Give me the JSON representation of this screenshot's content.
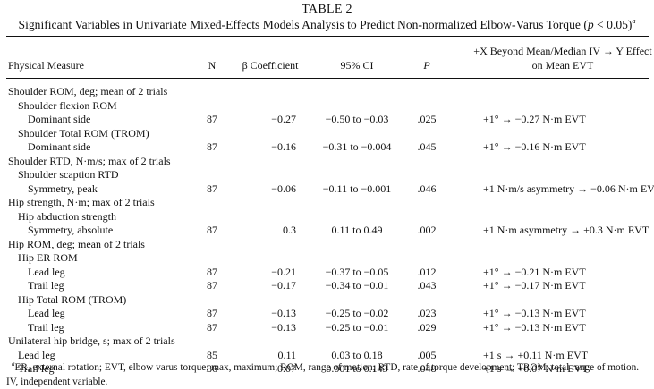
{
  "caption": {
    "table_number": "TABLE 2",
    "title_main": "Significant Variables in Univariate Mixed-Effects Models Analysis to Predict Non-normalized Elbow-Varus Torque (",
    "title_p": "p",
    "title_tail": " < 0.05)",
    "title_sup": "a"
  },
  "headers": {
    "physical_measure": "Physical Measure",
    "n": "N",
    "beta": "β Coefficient",
    "ci": "95% CI",
    "p": "P",
    "effect_line1": "+X Beyond Mean/Median IV → Y Effect",
    "effect_line2": "on Mean EVT"
  },
  "rows": [
    {
      "indent": 0,
      "label": "Shoulder ROM, deg; mean of 2 trials"
    },
    {
      "indent": 1,
      "label": "Shoulder flexion ROM"
    },
    {
      "indent": 2,
      "label": "Dominant side",
      "n": "87",
      "beta": "−0.27",
      "ci": "−0.50 to −0.03",
      "p": ".025",
      "effect": "+1° → −0.27 N·m EVT"
    },
    {
      "indent": 1,
      "label": "Shoulder Total ROM (TROM)"
    },
    {
      "indent": 2,
      "label": "Dominant side",
      "n": "87",
      "beta": "−0.16",
      "ci": "−0.31 to −0.004",
      "p": ".045",
      "effect": "+1° → −0.16 N·m EVT"
    },
    {
      "indent": 0,
      "label": "Shoulder RTD, N·m/s; max of 2 trials"
    },
    {
      "indent": 1,
      "label": "Shoulder scaption RTD"
    },
    {
      "indent": 2,
      "label": "Symmetry, peak",
      "n": "87",
      "beta": "−0.06",
      "ci": "−0.11 to −0.001",
      "p": ".046",
      "effect": "+1 N·m/s asymmetry → −0.06 N·m EVT"
    },
    {
      "indent": 0,
      "label": "Hip strength, N·m; max of 2 trials"
    },
    {
      "indent": 1,
      "label": "Hip abduction strength"
    },
    {
      "indent": 2,
      "label": "Symmetry, absolute",
      "n": "87",
      "beta": "0.3",
      "ci": "0.11 to 0.49",
      "p": ".002",
      "effect": "+1 N·m asymmetry → +0.3 N·m EVT"
    },
    {
      "indent": 0,
      "label": "Hip ROM, deg; mean of 2 trials"
    },
    {
      "indent": 1,
      "label": "Hip ER ROM"
    },
    {
      "indent": 2,
      "label": "Lead leg",
      "n": "87",
      "beta": "−0.21",
      "ci": "−0.37 to −0.05",
      "p": ".012",
      "effect": "+1° → −0.21 N·m EVT"
    },
    {
      "indent": 2,
      "label": "Trail leg",
      "n": "87",
      "beta": "−0.17",
      "ci": "−0.34 to −0.01",
      "p": ".043",
      "effect": "+1° → −0.17 N·m EVT"
    },
    {
      "indent": 1,
      "label": "Hip Total ROM (TROM)"
    },
    {
      "indent": 2,
      "label": "Lead leg",
      "n": "87",
      "beta": "−0.13",
      "ci": "−0.25 to −0.02",
      "p": ".023",
      "effect": "+1° → −0.13 N·m EVT"
    },
    {
      "indent": 2,
      "label": "Trail leg",
      "n": "87",
      "beta": "−0.13",
      "ci": "−0.25 to −0.01",
      "p": ".029",
      "effect": "+1° → −0.13 N·m EVT"
    },
    {
      "indent": 0,
      "label": "Unilateral hip bridge, s; max of 2 trials"
    },
    {
      "indent": 1,
      "label": "Lead leg",
      "n": "85",
      "beta": "0.11",
      "ci": "0.03 to 0.18",
      "p": ".005",
      "effect": "+1 s → +0.11 N·m EVT"
    },
    {
      "indent": 1,
      "label": "Trail leg",
      "n": "86",
      "beta": "0.07",
      "ci": "0.001 to 0.143",
      "p": ".048",
      "effect": "+1 s → +0.07 N·m EVT"
    }
  ],
  "footnote": {
    "marker": "a",
    "text": "ER, external rotation; EVT, elbow varus torque; max, maximum; ROM, range of motion; RTD, rate of torque development; TROM, total range of motion. IV, independent variable."
  }
}
